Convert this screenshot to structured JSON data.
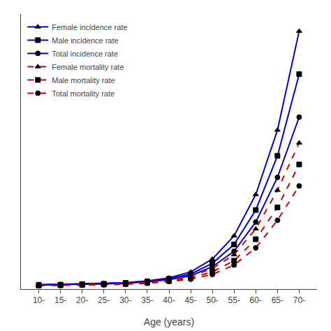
{
  "chart_data": {
    "type": "line",
    "xlabel": "Age (years)",
    "categories": [
      "10-",
      "15-",
      "20-",
      "25-",
      "30-",
      "35-",
      "40-",
      "45-",
      "50-",
      "55-",
      "60-",
      "65-",
      "70-"
    ],
    "series": [
      {
        "name": "Female incidence rate",
        "color": "#0000cc",
        "line_style": "solid",
        "marker": "triangle-up",
        "values": [
          0.5,
          0.55,
          0.6,
          0.65,
          0.75,
          0.95,
          1.3,
          2.0,
          3.5,
          6.2,
          11.0,
          18.5,
          30.0
        ]
      },
      {
        "name": "Male incidence rate",
        "color": "#0000cc",
        "line_style": "solid",
        "marker": "square",
        "values": [
          0.5,
          0.52,
          0.58,
          0.62,
          0.72,
          0.9,
          1.2,
          1.75,
          3.0,
          5.2,
          9.2,
          15.5,
          25.0
        ]
      },
      {
        "name": "Total incidence rate",
        "color": "#0000cc",
        "line_style": "solid",
        "marker": "circle",
        "values": [
          0.48,
          0.5,
          0.55,
          0.6,
          0.68,
          0.85,
          1.1,
          1.55,
          2.6,
          4.4,
          7.8,
          13.0,
          20.0
        ]
      },
      {
        "name": "Female mortality rate",
        "color": "#cc0000",
        "line_style": "dash",
        "marker": "triangle-up",
        "values": [
          0.45,
          0.48,
          0.52,
          0.58,
          0.65,
          0.8,
          1.05,
          1.5,
          2.4,
          4.0,
          7.0,
          11.5,
          17.0
        ]
      },
      {
        "name": "Male mortality rate",
        "color": "#cc0000",
        "line_style": "dash",
        "marker": "square",
        "values": [
          0.42,
          0.45,
          0.49,
          0.54,
          0.6,
          0.74,
          0.95,
          1.3,
          2.0,
          3.3,
          5.8,
          9.5,
          14.5
        ]
      },
      {
        "name": "Total mortality rate",
        "color": "#cc0000",
        "line_style": "dash",
        "marker": "circle",
        "values": [
          0.4,
          0.42,
          0.46,
          0.5,
          0.56,
          0.68,
          0.88,
          1.15,
          1.7,
          2.8,
          4.8,
          8.0,
          12.0
        ]
      }
    ],
    "ylim": [
      0,
      32
    ],
    "tick_labels": "x",
    "grid": false,
    "legend": "upper left"
  }
}
